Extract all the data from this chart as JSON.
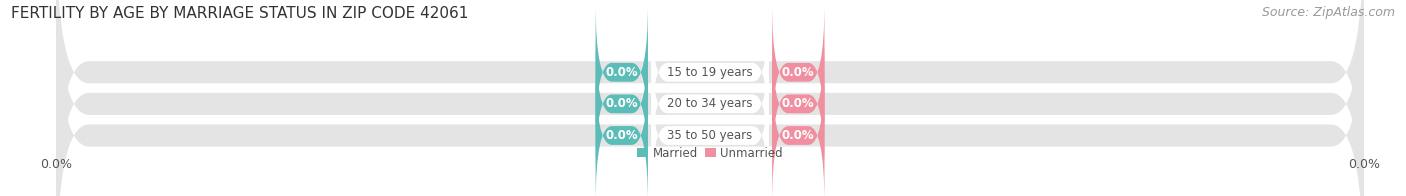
{
  "title": "FERTILITY BY AGE BY MARRIAGE STATUS IN ZIP CODE 42061",
  "source": "Source: ZipAtlas.com",
  "categories": [
    "15 to 19 years",
    "20 to 34 years",
    "35 to 50 years"
  ],
  "married_values": [
    0.0,
    0.0,
    0.0
  ],
  "unmarried_values": [
    0.0,
    0.0,
    0.0
  ],
  "married_color": "#5bbcb8",
  "unmarried_color": "#f08fa0",
  "bar_bg_color": "#e4e4e4",
  "center_label_bg": "#ffffff",
  "title_fontsize": 11,
  "source_fontsize": 9,
  "label_fontsize": 8.5,
  "tick_fontsize": 9,
  "legend_married": "Married",
  "legend_unmarried": "Unmarried",
  "bg_color": "#ffffff",
  "tick_label_color": "#555555",
  "value_label_color": "#ffffff",
  "category_label_color": "#555555",
  "source_color": "#999999",
  "title_color": "#333333"
}
